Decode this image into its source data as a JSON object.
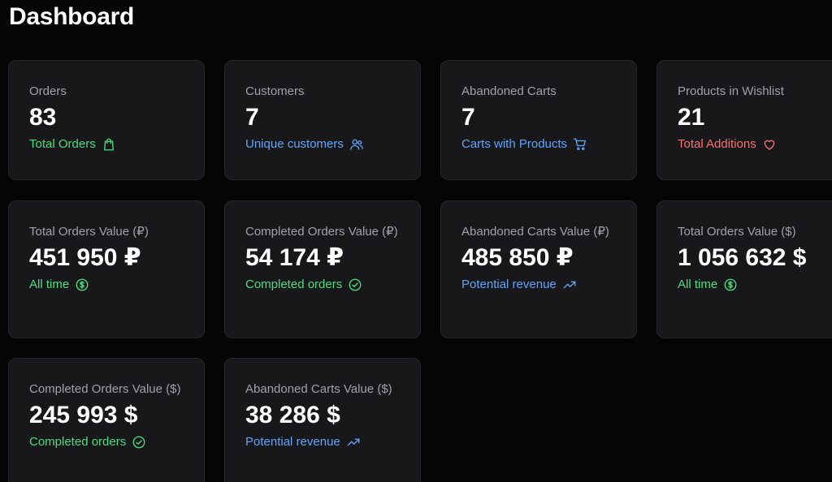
{
  "header": {
    "title": "Dashboard"
  },
  "colors": {
    "green": "#4ade80",
    "blue": "#60a5fa",
    "red": "#f87171",
    "card_bg": "#18181b",
    "page_bg": "#050505"
  },
  "cards": [
    {
      "label": "Orders",
      "value": "83",
      "foot": "Total Orders",
      "foot_color": "green",
      "icon": "shopping-bag-icon"
    },
    {
      "label": "Customers",
      "value": "7",
      "foot": "Unique customers",
      "foot_color": "blue",
      "icon": "users-icon"
    },
    {
      "label": "Abandoned Carts",
      "value": "7",
      "foot": "Carts with Products",
      "foot_color": "blue",
      "icon": "shopping-cart-icon"
    },
    {
      "label": "Products in Wishlist",
      "value": "21",
      "foot": "Total Additions",
      "foot_color": "red",
      "icon": "heart-icon"
    },
    {
      "label": "Total Orders Value (₽)",
      "value": "451 950 ₽",
      "foot": "All time",
      "foot_color": "green",
      "icon": "dollar-circle-icon"
    },
    {
      "label": "Completed Orders Value (₽)",
      "value": "54 174 ₽",
      "foot": "Completed orders",
      "foot_color": "green",
      "icon": "check-circle-icon"
    },
    {
      "label": "Abandoned Carts Value (₽)",
      "value": "485 850 ₽",
      "foot": "Potential revenue",
      "foot_color": "blue",
      "icon": "trending-up-icon"
    },
    {
      "label": "Total Orders Value ($)",
      "value": "1 056 632 $",
      "foot": "All time",
      "foot_color": "green",
      "icon": "dollar-circle-icon"
    },
    {
      "label": "Completed Orders Value ($)",
      "value": "245 993 $",
      "foot": "Completed orders",
      "foot_color": "green",
      "icon": "check-circle-icon"
    },
    {
      "label": "Abandoned Carts Value ($)",
      "value": "38 286 $",
      "foot": "Potential revenue",
      "foot_color": "blue",
      "icon": "trending-up-icon"
    }
  ]
}
